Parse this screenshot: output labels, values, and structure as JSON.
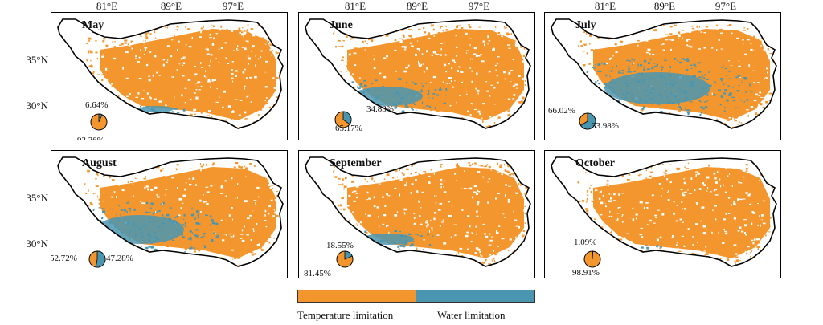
{
  "colors": {
    "temperature": "#F4962E",
    "water": "#4A96B1"
  },
  "axes": {
    "lon_ticks": [
      "81°E",
      "89°E",
      "97°E"
    ],
    "lat_ticks": [
      "35°N",
      "30°N"
    ]
  },
  "panels": [
    {
      "title": "May",
      "temperature_pct": "93.36%",
      "water_pct": "6.64%",
      "temperature_fraction": 0.9336,
      "water_fraction": 0.0664,
      "water_share_note": "low"
    },
    {
      "title": "June",
      "temperature_pct": "65.17%",
      "water_pct": "34.83%",
      "temperature_fraction": 0.6517,
      "water_fraction": 0.3483
    },
    {
      "title": "July",
      "temperature_pct": "33.98%",
      "water_pct": "66.02%",
      "temperature_fraction": 0.3398,
      "water_fraction": 0.6602
    },
    {
      "title": "August",
      "temperature_pct": "47.28%",
      "water_pct": "52.72%",
      "temperature_fraction": 0.4728,
      "water_fraction": 0.5272
    },
    {
      "title": "September",
      "temperature_pct": "81.45%",
      "water_pct": "18.55%",
      "temperature_fraction": 0.8145,
      "water_fraction": 0.1855
    },
    {
      "title": "October",
      "temperature_pct": "98.91%",
      "water_pct": "1.09%",
      "temperature_fraction": 0.9891,
      "water_fraction": 0.0109
    }
  ],
  "legend": {
    "temperature_label": "Temperature limitation",
    "water_label": "Water limitation"
  }
}
